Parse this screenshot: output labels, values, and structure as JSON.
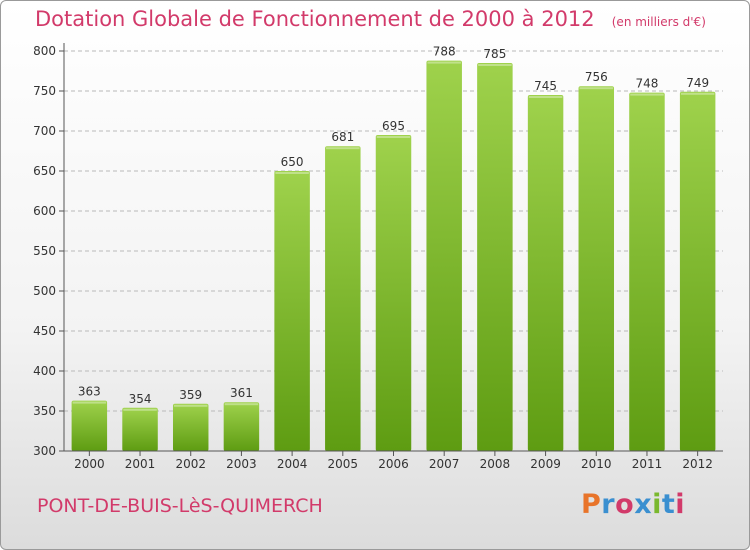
{
  "header": {
    "title": "Dotation Globale de Fonctionnement de 2000 à 2012",
    "unit": "(en milliers d'€)"
  },
  "footer": {
    "commune": "PONT-DE-BUIS-LèS-QUIMERCH",
    "brand": "Proxiti",
    "brand_colors": [
      "#e8742a",
      "#3a8fd0",
      "#d23a6a",
      "#3a8fd0",
      "#7ab82e",
      "#3a8fd0",
      "#d23a6a"
    ]
  },
  "colors": {
    "bar_top": "#9fd24c",
    "bar_bottom": "#5e9c12",
    "grid": "#b9b9b9",
    "axis_text": "#333333",
    "accent": "#d23a6a"
  },
  "chart_data": {
    "type": "bar",
    "categories": [
      "2000",
      "2001",
      "2002",
      "2003",
      "2004",
      "2005",
      "2006",
      "2007",
      "2008",
      "2009",
      "2010",
      "2011",
      "2012"
    ],
    "values": [
      363,
      354,
      359,
      361,
      650,
      681,
      695,
      788,
      785,
      745,
      756,
      748,
      749
    ],
    "data_labels": [
      "363",
      "354",
      "359",
      "361",
      "650",
      "681",
      "695",
      "788",
      "785",
      "745",
      "756",
      "748",
      "749"
    ],
    "yticks": [
      300,
      350,
      400,
      450,
      500,
      550,
      600,
      650,
      700,
      750,
      800
    ],
    "ytick_labels": [
      "300",
      "350",
      "400",
      "450",
      "500",
      "550",
      "600",
      "650",
      "700",
      "750",
      "800"
    ],
    "ylim": [
      300,
      800
    ],
    "grid": true,
    "legend": "none"
  }
}
